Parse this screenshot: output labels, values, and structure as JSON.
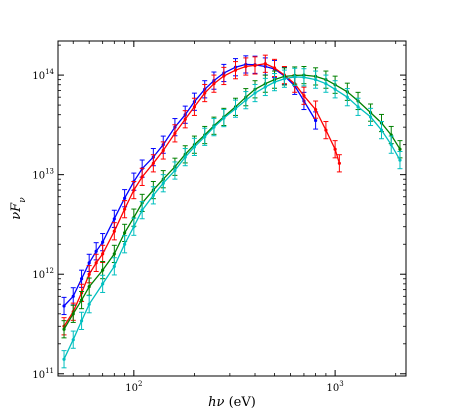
{
  "chart_data": {
    "type": "line",
    "x_scale": "log",
    "y_scale": "log",
    "xlim": [
      42,
      2250
    ],
    "ylim": [
      95000000000,
      220000000000000
    ],
    "grid": false,
    "legend": "none",
    "axis_labels": {
      "x_main": "hν",
      "x_unit": " (eV)",
      "y_main": "νF",
      "y_sub": "ν"
    },
    "x_ticks": [
      {
        "value": 100,
        "base": "10",
        "exp": "2"
      },
      {
        "value": 1000,
        "base": "10",
        "exp": "3"
      }
    ],
    "y_ticks": [
      {
        "value": 100000000000,
        "base": "10",
        "exp": "11"
      },
      {
        "value": 1000000000000,
        "base": "10",
        "exp": "12"
      },
      {
        "value": 10000000000000,
        "base": "10",
        "exp": "13"
      },
      {
        "value": 100000000000000,
        "base": "10",
        "exp": "14"
      }
    ],
    "error_fraction": 0.22,
    "series": [
      {
        "color": "#0000ff",
        "x": [
          45,
          50,
          55,
          60,
          65,
          70,
          80,
          90,
          100,
          110,
          125,
          140,
          160,
          180,
          200,
          225,
          250,
          280,
          320,
          360,
          400,
          450,
          500,
          560,
          630,
          700,
          800
        ],
        "y": [
          480000000000,
          600000000000,
          900000000000,
          1300000000000,
          1700000000000,
          2100000000000,
          3600000000000,
          5800000000000,
          8500000000000,
          11500000000000,
          15000000000000,
          20000000000000,
          30000000000000,
          40000000000000,
          54000000000000,
          72000000000000,
          88000000000000,
          105000000000000,
          120000000000000,
          128000000000000,
          127000000000000,
          122000000000000,
          115000000000000,
          98000000000000,
          78000000000000,
          55000000000000,
          35000000000000
        ]
      },
      {
        "color": "#ff0000",
        "x": [
          45,
          50,
          55,
          60,
          65,
          70,
          80,
          90,
          100,
          110,
          125,
          140,
          160,
          180,
          200,
          225,
          250,
          280,
          320,
          360,
          400,
          450,
          500,
          560,
          630,
          700,
          800,
          900,
          1000,
          1050
        ],
        "y": [
          300000000000,
          420000000000,
          650000000000,
          1000000000000,
          1300000000000,
          1600000000000,
          2700000000000,
          4500000000000,
          7000000000000,
          9500000000000,
          13000000000000,
          17500000000000,
          26000000000000,
          36000000000000,
          48000000000000,
          66000000000000,
          82000000000000,
          98000000000000,
          112000000000000,
          122000000000000,
          125000000000000,
          130000000000000,
          118000000000000,
          100000000000000,
          82000000000000,
          62000000000000,
          45000000000000,
          28000000000000,
          18000000000000,
          13000000000000
        ]
      },
      {
        "color": "#008000",
        "x": [
          45,
          50,
          55,
          60,
          70,
          80,
          90,
          100,
          110,
          125,
          140,
          160,
          180,
          200,
          225,
          250,
          280,
          320,
          360,
          400,
          450,
          500,
          560,
          630,
          700,
          800,
          900,
          1000,
          1150,
          1300,
          1500,
          1700,
          1900,
          2100
        ],
        "y": [
          280000000000,
          400000000000,
          550000000000,
          750000000000,
          1100000000000,
          1600000000000,
          2600000000000,
          3700000000000,
          5200000000000,
          7000000000000,
          9000000000000,
          12000000000000,
          16000000000000,
          20000000000000,
          25000000000000,
          31000000000000,
          38000000000000,
          48000000000000,
          60000000000000,
          72000000000000,
          82000000000000,
          90000000000000,
          97000000000000,
          99000000000000,
          100000000000000,
          97000000000000,
          90000000000000,
          80000000000000,
          68000000000000,
          55000000000000,
          42000000000000,
          33000000000000,
          25000000000000,
          18000000000000
        ]
      },
      {
        "color": "#00bfbf",
        "x": [
          45,
          50,
          55,
          60,
          70,
          80,
          90,
          100,
          110,
          125,
          140,
          160,
          180,
          200,
          225,
          250,
          280,
          320,
          360,
          400,
          450,
          500,
          560,
          630,
          700,
          800,
          900,
          1000,
          1150,
          1300,
          1500,
          1700,
          1900,
          2100
        ],
        "y": [
          140000000000,
          220000000000,
          340000000000,
          500000000000,
          800000000000,
          1200000000000,
          2000000000000,
          3000000000000,
          4400000000000,
          6200000000000,
          8200000000000,
          11000000000000,
          15000000000000,
          19000000000000,
          24000000000000,
          30000000000000,
          37000000000000,
          46000000000000,
          56000000000000,
          66000000000000,
          76000000000000,
          85000000000000,
          92000000000000,
          96000000000000,
          95000000000000,
          90000000000000,
          82000000000000,
          72000000000000,
          60000000000000,
          48000000000000,
          38000000000000,
          28000000000000,
          20000000000000,
          14000000000000
        ]
      }
    ]
  }
}
